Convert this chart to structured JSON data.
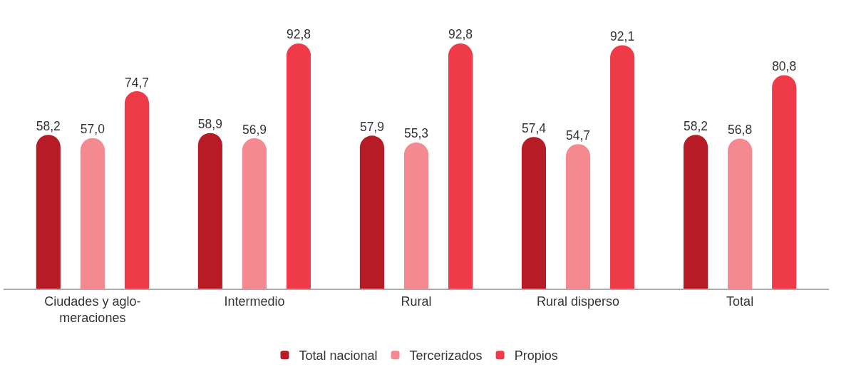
{
  "chart_data": {
    "type": "bar",
    "categories": [
      "Ciudades y aglo-\nmeraciones",
      "Intermedio",
      "Rural",
      "Rural disperso",
      "Total"
    ],
    "series": [
      {
        "name": "Total nacional",
        "color": "#b71c26",
        "values": [
          58.2,
          58.9,
          57.9,
          57.4,
          58.2
        ],
        "value_labels": [
          "58,2",
          "58,9",
          "57,9",
          "57,4",
          "58,2"
        ]
      },
      {
        "name": "Tercerizados",
        "color": "#f48a90",
        "values": [
          57.0,
          56.9,
          55.3,
          54.7,
          56.8
        ],
        "value_labels": [
          "57,0",
          "56,9",
          "55,3",
          "54,7",
          "56,8"
        ]
      },
      {
        "name": "Propios",
        "color": "#ef3a47",
        "values": [
          74.7,
          92.8,
          92.8,
          92.1,
          80.8
        ],
        "value_labels": [
          "74,7",
          "92,8",
          "92,8",
          "92,1",
          "80,8"
        ]
      }
    ],
    "legend": "bottom"
  }
}
